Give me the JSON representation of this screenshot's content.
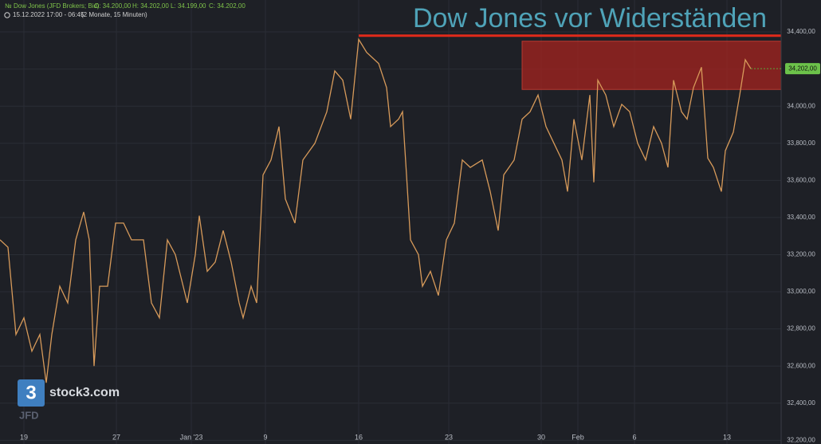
{
  "chart_data": {
    "type": "line",
    "title": "Dow Jones vor Widerständen",
    "instrument": "Dow Jones (JFD Brokers; Bid)",
    "ohlc_labels": [
      "O: 34.200,00",
      "H: 34.202,00",
      "L: 34.199,00",
      "C: 34.202,00"
    ],
    "range_label": "15.12.2022 17:00 - 06:45",
    "period_label": "(2 Monate, 15 Minuten)",
    "logo": "stock3.com",
    "broker": "JFD",
    "last_price": 34202,
    "last_price_label": "34,202,00",
    "resistance_line": 34380,
    "resistance_line_start": 45,
    "resistance_zone": [
      34090,
      34350
    ],
    "resistance_zone_start": 65.5,
    "x": [
      0,
      1,
      2,
      3,
      4,
      5,
      5.8,
      6.5,
      7.5,
      8.5,
      9.5,
      10.5,
      11.2,
      11.8,
      12.5,
      13.5,
      14.5,
      15.5,
      16.5,
      18,
      19,
      20,
      21,
      22,
      23.5,
      24.5,
      25,
      26,
      27,
      28,
      29,
      30,
      30.5,
      31.5,
      32.2,
      33,
      34,
      35,
      35.8,
      37,
      38,
      39.5,
      41,
      42,
      43,
      44,
      45,
      46,
      47.5,
      48.5,
      49,
      50,
      50.5,
      51,
      51.5,
      52.5,
      53,
      54,
      55,
      56,
      57,
      58,
      59,
      60.5,
      61.5,
      62.5,
      63.2,
      64.5,
      65.5,
      66.5,
      67.5,
      68.5,
      69.5,
      70.5,
      71.2,
      72,
      73,
      74,
      74.5,
      75,
      76,
      77,
      78,
      79,
      80,
      81,
      82,
      83,
      83.8,
      84.5,
      85.5,
      86.2,
      87,
      88,
      88.8,
      89.5,
      90.5,
      91,
      92,
      92.8,
      93.5,
      94.2
    ],
    "series": [
      {
        "color": "#d79a5a",
        "values": [
          33280,
          33240,
          32770,
          32860,
          32680,
          32770,
          32510,
          32770,
          33030,
          32940,
          33280,
          33430,
          33280,
          32600,
          33030,
          33030,
          33370,
          33370,
          33280,
          33280,
          32940,
          32860,
          33280,
          33200,
          32940,
          33200,
          33410,
          33110,
          33160,
          33330,
          33160,
          32940,
          32860,
          33030,
          32940,
          33630,
          33710,
          33890,
          33500,
          33370,
          33710,
          33800,
          33970,
          34190,
          34140,
          33930,
          34360,
          34290,
          34230,
          34100,
          33890,
          33930,
          33970,
          33630,
          33280,
          33200,
          33030,
          33110,
          32980,
          33280,
          33370,
          33710,
          33670,
          33710,
          33540,
          33330,
          33630,
          33710,
          33930,
          33970,
          34060,
          33890,
          33800,
          33710,
          33540,
          33930,
          33710,
          34060,
          33590,
          34140,
          34060,
          33890,
          34010,
          33970,
          33800,
          33710,
          33890,
          33800,
          33670,
          34140,
          33970,
          33930,
          34100,
          34210,
          33720,
          33670,
          33540,
          33760,
          33860,
          34060,
          34250,
          34202
        ]
      }
    ],
    "xlim": [
      0,
      98
    ],
    "ylim": [
      32180,
      34572
    ],
    "xticks": [
      {
        "value": 3,
        "label": "19"
      },
      {
        "value": 14.6,
        "label": "27"
      },
      {
        "value": 24,
        "label": "Jan '23"
      },
      {
        "value": 33.3,
        "label": "9"
      },
      {
        "value": 45,
        "label": "16"
      },
      {
        "value": 56.3,
        "label": "23"
      },
      {
        "value": 67.9,
        "label": "30"
      },
      {
        "value": 72.5,
        "label": "Feb"
      },
      {
        "value": 79.6,
        "label": "6"
      },
      {
        "value": 91.2,
        "label": "13"
      }
    ],
    "yticks": [
      {
        "value": 32200,
        "label": "32,200,00"
      },
      {
        "value": 32400,
        "label": "32,400,00"
      },
      {
        "value": 32600,
        "label": "32,600,00"
      },
      {
        "value": 32800,
        "label": "32,800,00"
      },
      {
        "value": 33000,
        "label": "33,000,00"
      },
      {
        "value": 33200,
        "label": "33,200,00"
      },
      {
        "value": 33400,
        "label": "33,400,00"
      },
      {
        "value": 33600,
        "label": "33,600,00"
      },
      {
        "value": 33800,
        "label": "33,800,00"
      },
      {
        "value": 34000,
        "label": "34,000,00"
      },
      {
        "value": 34200,
        "label": "34,200,00"
      },
      {
        "value": 34400,
        "label": "34,400,00"
      }
    ],
    "grid": true
  }
}
